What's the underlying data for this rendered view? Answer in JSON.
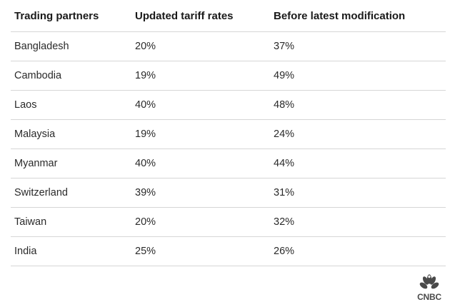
{
  "chart_data": {
    "type": "table",
    "columns": [
      "Trading partners",
      "Updated tariff rates",
      "Before latest modification"
    ],
    "rows": [
      [
        "Bangladesh",
        "20%",
        "37%"
      ],
      [
        "Cambodia",
        "19%",
        "49%"
      ],
      [
        "Laos",
        "40%",
        "48%"
      ],
      [
        "Malaysia",
        "19%",
        "24%"
      ],
      [
        "Myanmar",
        "40%",
        "44%"
      ],
      [
        "Switzerland",
        "39%",
        "31%"
      ],
      [
        "Taiwan",
        "20%",
        "32%"
      ],
      [
        "India",
        "25%",
        "26%"
      ]
    ]
  },
  "logo": {
    "text": "CNBC",
    "icon": "cnbc-peacock-icon",
    "color": "#4a4a4a"
  },
  "colors": {
    "header_text": "#1a1a1a",
    "cell_text": "#2a2a2a",
    "row_border": "#d6d6d6"
  }
}
